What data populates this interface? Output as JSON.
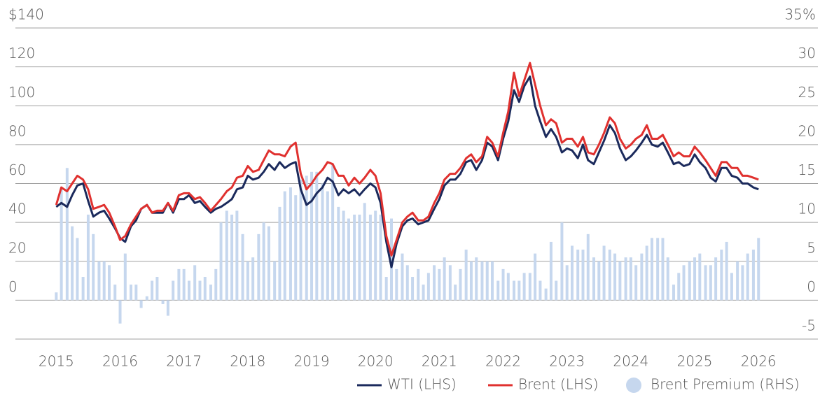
{
  "chart_data": {
    "type": "line",
    "x": [
      2015,
      2015.08,
      2015.17,
      2015.25,
      2015.33,
      2015.42,
      2015.5,
      2015.58,
      2015.67,
      2015.75,
      2015.83,
      2015.92,
      2016,
      2016.08,
      2016.17,
      2016.25,
      2016.33,
      2016.42,
      2016.5,
      2016.58,
      2016.67,
      2016.75,
      2016.83,
      2016.92,
      2017,
      2017.08,
      2017.17,
      2017.25,
      2017.33,
      2017.42,
      2017.5,
      2017.58,
      2017.67,
      2017.75,
      2017.83,
      2017.92,
      2018,
      2018.08,
      2018.17,
      2018.25,
      2018.33,
      2018.42,
      2018.5,
      2018.58,
      2018.67,
      2018.75,
      2018.83,
      2018.92,
      2019,
      2019.08,
      2019.17,
      2019.25,
      2019.33,
      2019.42,
      2019.5,
      2019.58,
      2019.67,
      2019.75,
      2019.83,
      2019.92,
      2020,
      2020.08,
      2020.17,
      2020.25,
      2020.33,
      2020.42,
      2020.5,
      2020.58,
      2020.67,
      2020.75,
      2020.83,
      2020.92,
      2021,
      2021.08,
      2021.17,
      2021.25,
      2021.33,
      2021.42,
      2021.5,
      2021.58,
      2021.67,
      2021.75,
      2021.83,
      2021.92,
      2022,
      2022.08,
      2022.17,
      2022.25,
      2022.33,
      2022.42,
      2022.5,
      2022.58,
      2022.67,
      2022.75,
      2022.83,
      2022.92,
      2023,
      2023.08,
      2023.17,
      2023.25,
      2023.33,
      2023.42,
      2023.5,
      2023.58,
      2023.67,
      2023.75,
      2023.83,
      2023.92,
      2024,
      2024.08,
      2024.17,
      2024.25,
      2024.33,
      2024.42,
      2024.5,
      2024.58,
      2024.67,
      2024.75,
      2024.83,
      2024.92,
      2025,
      2025.08,
      2025.17,
      2025.25,
      2025.33,
      2025.42,
      2025.5,
      2025.58,
      2025.67,
      2025.75,
      2025.83,
      2025.92,
      2026
    ],
    "series": [
      {
        "name": "WTI (LHS)",
        "type": "line",
        "axis": "y",
        "color": "#1b2a5c",
        "values": [
          48,
          50,
          48,
          54,
          59,
          60,
          51,
          43,
          45,
          46,
          42,
          37,
          32,
          30,
          38,
          41,
          47,
          49,
          45,
          45,
          45,
          50,
          45,
          52,
          52,
          54,
          50,
          51,
          48,
          45,
          47,
          48,
          50,
          52,
          57,
          58,
          64,
          62,
          63,
          66,
          70,
          67,
          71,
          68,
          70,
          71,
          57,
          49,
          51,
          55,
          58,
          63,
          61,
          54,
          57,
          55,
          57,
          54,
          57,
          60,
          58,
          50,
          30,
          17,
          29,
          38,
          41,
          42,
          39,
          40,
          41,
          47,
          52,
          59,
          62,
          62,
          65,
          71,
          72,
          67,
          72,
          81,
          79,
          72,
          83,
          92,
          108,
          102,
          110,
          115,
          100,
          92,
          84,
          88,
          84,
          76,
          78,
          77,
          73,
          80,
          72,
          70,
          76,
          82,
          90,
          86,
          78,
          72,
          74,
          77,
          81,
          85,
          80,
          79,
          81,
          76,
          70,
          71,
          69,
          70,
          75,
          71,
          68,
          63,
          61,
          68,
          68,
          64,
          63,
          60,
          60,
          58,
          57
        ]
      },
      {
        "name": "Brent (LHS)",
        "type": "line",
        "axis": "y",
        "color": "#e0312f",
        "values": [
          49,
          58,
          56,
          60,
          64,
          62,
          57,
          47,
          48,
          49,
          45,
          38,
          31,
          33,
          39,
          43,
          47,
          49,
          45,
          46,
          46,
          50,
          46,
          54,
          55,
          55,
          52,
          53,
          50,
          46,
          49,
          52,
          56,
          58,
          63,
          64,
          69,
          66,
          67,
          72,
          77,
          75,
          75,
          74,
          79,
          81,
          65,
          57,
          60,
          64,
          67,
          71,
          70,
          64,
          64,
          59,
          63,
          60,
          63,
          67,
          64,
          55,
          33,
          23,
          31,
          40,
          43,
          45,
          41,
          41,
          43,
          50,
          55,
          62,
          65,
          65,
          68,
          73,
          75,
          71,
          74,
          84,
          81,
          74,
          86,
          97,
          117,
          105,
          113,
          122,
          111,
          100,
          90,
          93,
          91,
          81,
          83,
          83,
          79,
          84,
          76,
          75,
          80,
          86,
          94,
          91,
          83,
          78,
          80,
          83,
          85,
          90,
          83,
          83,
          85,
          80,
          74,
          76,
          74,
          74,
          79,
          76,
          72,
          68,
          64,
          71,
          71,
          68,
          68,
          64,
          64,
          63,
          62
        ]
      },
      {
        "name": "Brent Premium (RHS)",
        "type": "bar",
        "axis": "y2",
        "color": "#c6d7ee",
        "values": [
          1,
          14.5,
          17,
          9.5,
          8,
          3,
          11,
          8.5,
          5,
          5,
          4.5,
          2,
          -3,
          6,
          2,
          2,
          -1,
          0.5,
          2.5,
          3,
          -0.5,
          -2,
          2.5,
          4,
          4,
          2.5,
          4.5,
          2.5,
          3,
          2,
          4,
          10,
          11.5,
          11,
          11.5,
          8.5,
          5,
          5.5,
          8.5,
          10,
          9.5,
          5,
          12,
          14,
          14.5,
          13.5,
          15.5,
          16,
          16.5,
          16.5,
          15,
          14,
          17.5,
          12,
          11.5,
          10.5,
          11,
          11,
          12.5,
          11,
          11.5,
          11,
          3,
          10.5,
          4,
          6,
          4.5,
          3,
          4,
          2,
          3.5,
          4.5,
          4,
          5.5,
          4.5,
          2,
          4,
          6.5,
          5,
          5.5,
          5,
          5,
          5,
          2.5,
          4,
          3.5,
          2.5,
          2.5,
          3.5,
          3.5,
          6,
          2.5,
          1.5,
          7.5,
          2.5,
          10,
          4.5,
          7,
          6.5,
          6.5,
          8.5,
          5.5,
          5,
          7,
          6.5,
          6,
          5,
          5.5,
          5.5,
          4.5,
          6,
          7,
          8,
          8,
          8,
          5.5,
          2,
          3.5,
          4.5,
          5,
          5.5,
          6,
          4.5,
          4.5,
          5.5,
          6.5,
          7.5,
          3.5,
          5,
          4.5,
          6,
          6.5,
          8
        ]
      }
    ],
    "xlim": [
      2014.36,
      2026.93
    ],
    "xticks": [
      2015,
      2016,
      2017,
      2018,
      2019,
      2020,
      2021,
      2022,
      2023,
      2024,
      2025,
      2026
    ],
    "ylim": [
      -20,
      140
    ],
    "yticks": [
      0,
      20,
      40,
      60,
      80,
      100,
      120,
      {
        "value": 140,
        "label": "$140"
      }
    ],
    "y2lim": [
      -5,
      35
    ],
    "y2ticks": [
      -5,
      0,
      5,
      10,
      15,
      20,
      25,
      30,
      {
        "value": 35,
        "label": "35%"
      }
    ],
    "grid": true,
    "legend": "bottom-right"
  }
}
